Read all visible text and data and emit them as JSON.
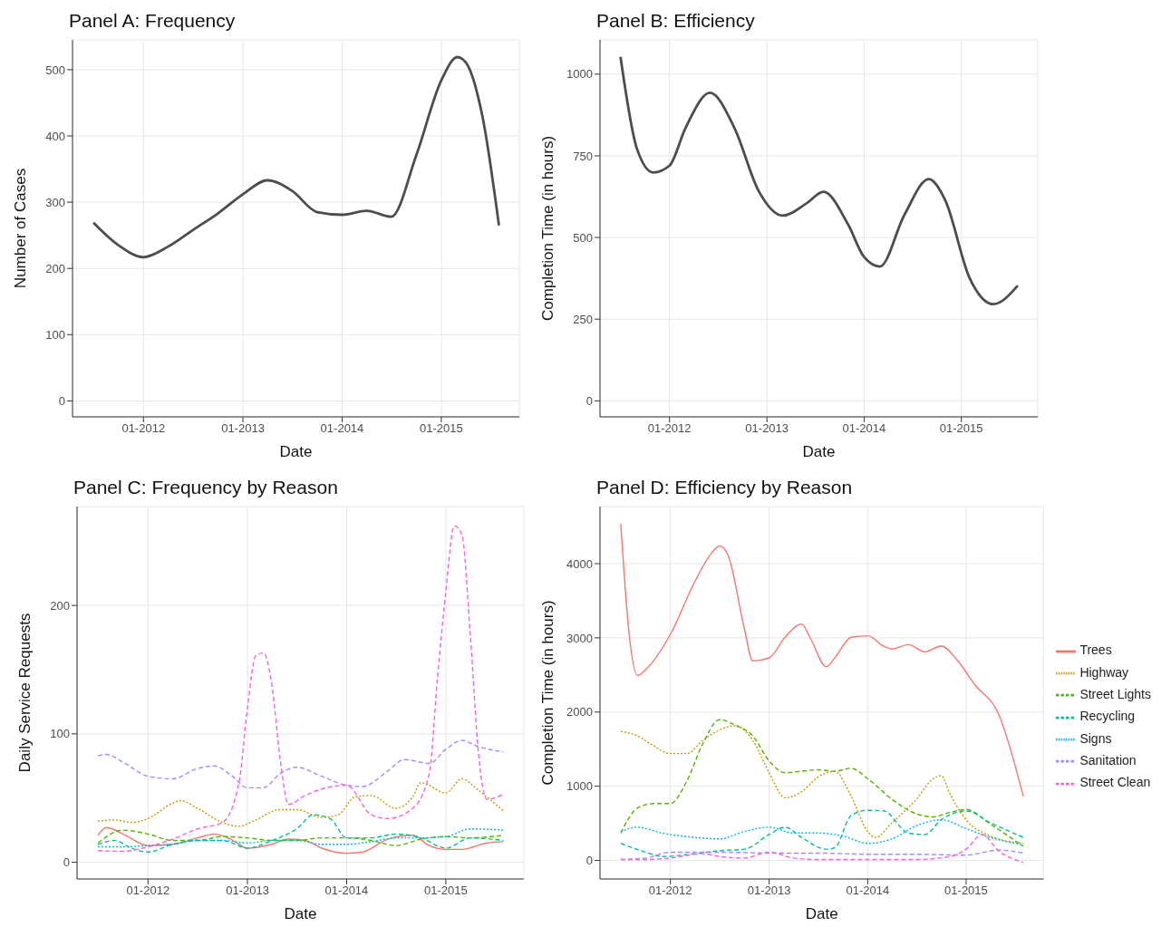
{
  "chart_data": [
    {
      "type": "line",
      "title": "Panel A: Frequency",
      "xlabel": "Date",
      "ylabel": "Number of Cases",
      "grid": true,
      "color": "#4d4d4d",
      "x": [
        "2011-07",
        "2011-10",
        "2012-01",
        "2012-04",
        "2012-07",
        "2012-10",
        "2013-01",
        "2013-04",
        "2013-07",
        "2013-10",
        "2014-01",
        "2014-04",
        "2014-07",
        "2014-10",
        "2015-01",
        "2015-03",
        "2015-04",
        "2015-06",
        "2015-08"
      ],
      "values": [
        269,
        235,
        217,
        233,
        258,
        283,
        312,
        333,
        317,
        285,
        281,
        287,
        278,
        371,
        484,
        519,
        511,
        430,
        265
      ],
      "xlim": [
        "2011-04-15",
        "2015-10-15"
      ],
      "xticks": [
        {
          "value": "2012-01",
          "label": "01-2012"
        },
        {
          "value": "2013-01",
          "label": "01-2013"
        },
        {
          "value": "2014-01",
          "label": "01-2014"
        },
        {
          "value": "2015-01",
          "label": "01-2015"
        }
      ],
      "ylim": [
        -24,
        545
      ],
      "yticks": [
        0,
        100,
        200,
        300,
        400,
        500
      ]
    },
    {
      "type": "line",
      "title": "Panel B: Efficiency",
      "xlabel": "Date",
      "ylabel": "Completion Time (in hours)",
      "grid": true,
      "color": "#4d4d4d",
      "x": [
        "2011-07",
        "2011-09",
        "2011-11",
        "2012-01",
        "2012-03",
        "2012-06",
        "2012-09",
        "2012-12",
        "2013-03",
        "2013-06",
        "2013-08",
        "2013-11",
        "2014-01",
        "2014-03",
        "2014-06",
        "2014-09",
        "2014-11",
        "2015-02",
        "2015-05",
        "2015-08"
      ],
      "values": [
        1053,
        771,
        699,
        720,
        835,
        943,
        835,
        642,
        567,
        606,
        640,
        541,
        440,
        411,
        569,
        679,
        615,
        376,
        296,
        353
      ],
      "xlim": [
        "2011-04-15",
        "2015-10-15"
      ],
      "xticks": [
        {
          "value": "2012-01",
          "label": "01-2012"
        },
        {
          "value": "2013-01",
          "label": "01-2013"
        },
        {
          "value": "2014-01",
          "label": "01-2014"
        },
        {
          "value": "2015-01",
          "label": "01-2015"
        }
      ],
      "ylim": [
        -49,
        1105
      ],
      "yticks": [
        0,
        250,
        500,
        750,
        1000
      ]
    },
    {
      "type": "line",
      "title": "Panel C: Frequency by Reason",
      "xlabel": "Date",
      "ylabel": "Daily Service Requests",
      "grid": true,
      "xlim": [
        "2011-04-15",
        "2015-10-15"
      ],
      "xticks": [
        {
          "value": "2012-01",
          "label": "01-2012"
        },
        {
          "value": "2013-01",
          "label": "01-2013"
        },
        {
          "value": "2014-01",
          "label": "01-2014"
        },
        {
          "value": "2015-01",
          "label": "01-2015"
        }
      ],
      "ylim": [
        -13,
        277
      ],
      "yticks": [
        0,
        100,
        200
      ],
      "series": [
        {
          "color": "#f8766d",
          "line_style": "solid",
          "x": [
            "2011-07",
            "2011-08",
            "2011-10",
            "2012-01",
            "2012-04",
            "2012-07",
            "2012-09",
            "2012-11",
            "2013-01",
            "2013-04",
            "2013-06",
            "2013-08",
            "2013-10",
            "2014-01",
            "2014-03",
            "2014-06",
            "2014-09",
            "2014-11",
            "2015-01",
            "2015-03",
            "2015-06",
            "2015-08"
          ],
          "values": [
            21,
            27,
            22,
            13,
            14,
            19,
            22,
            18,
            11,
            14,
            18,
            17,
            11,
            7,
            8,
            18,
            21,
            13,
            10,
            10,
            15,
            16
          ]
        },
        {
          "color": "#c49a00",
          "line_style": "dotted",
          "x": [
            "2011-07",
            "2011-09",
            "2011-11",
            "2012-01",
            "2012-04",
            "2012-05",
            "2012-07",
            "2012-10",
            "2012-12",
            "2013-02",
            "2013-05",
            "2013-07",
            "2013-10",
            "2013-12",
            "2014-02",
            "2014-04",
            "2014-07",
            "2014-09",
            "2014-10",
            "2015-01",
            "2015-03",
            "2015-05",
            "2015-08"
          ],
          "values": [
            32,
            33,
            31,
            34,
            46,
            48,
            42,
            31,
            28,
            33,
            41,
            41,
            35,
            37,
            51,
            52,
            42,
            51,
            62,
            54,
            65,
            56,
            40
          ]
        },
        {
          "color": "#53b400",
          "line_style": "dashed",
          "x": [
            "2011-07",
            "2011-10",
            "2012-01",
            "2012-04",
            "2012-07",
            "2012-10",
            "2013-01",
            "2013-04",
            "2013-07",
            "2013-10",
            "2014-01",
            "2014-04",
            "2014-07",
            "2014-10",
            "2015-01",
            "2015-04",
            "2015-08"
          ],
          "values": [
            15,
            25,
            22,
            17,
            17,
            20,
            19,
            17,
            17,
            19,
            19,
            17,
            13,
            18,
            20,
            19,
            21
          ]
        },
        {
          "color": "#00c094",
          "line_style": "dashed",
          "x": [
            "2011-07",
            "2011-09",
            "2011-11",
            "2012-01",
            "2012-04",
            "2012-07",
            "2012-10",
            "2013-01",
            "2013-04",
            "2013-07",
            "2013-09",
            "2013-11",
            "2014-01",
            "2014-04",
            "2014-07",
            "2014-10",
            "2015-01",
            "2015-04",
            "2015-08"
          ],
          "values": [
            14,
            17,
            11,
            8,
            14,
            17,
            17,
            11,
            17,
            26,
            37,
            34,
            19,
            19,
            22,
            19,
            11,
            19,
            17
          ]
        },
        {
          "color": "#00b6eb",
          "line_style": "dotted",
          "x": [
            "2011-07",
            "2011-10",
            "2012-01",
            "2012-04",
            "2012-07",
            "2012-10",
            "2013-01",
            "2013-04",
            "2013-07",
            "2013-10",
            "2014-01",
            "2014-04",
            "2014-07",
            "2014-10",
            "2015-01",
            "2015-04",
            "2015-08"
          ],
          "values": [
            12,
            12,
            13,
            14,
            17,
            17,
            15,
            17,
            17,
            14,
            14,
            16,
            19,
            19,
            20,
            26,
            25
          ]
        },
        {
          "color": "#a58aff",
          "line_style": "dashed",
          "x": [
            "2011-07",
            "2011-08",
            "2011-10",
            "2012-01",
            "2012-04",
            "2012-07",
            "2012-09",
            "2012-11",
            "2013-01",
            "2013-03",
            "2013-05",
            "2013-07",
            "2013-10",
            "2014-01",
            "2014-03",
            "2014-06",
            "2014-08",
            "2014-11",
            "2015-01",
            "2015-03",
            "2015-05",
            "2015-08"
          ],
          "values": [
            83,
            84,
            78,
            67,
            65,
            73,
            75,
            68,
            58,
            58,
            69,
            74,
            67,
            60,
            59,
            71,
            80,
            77,
            88,
            95,
            90,
            86
          ]
        },
        {
          "color": "#fb61d7",
          "line_style": "dashed",
          "x": [
            "2011-07",
            "2011-10",
            "2012-01",
            "2012-04",
            "2012-07",
            "2012-10",
            "2012-12",
            "2013-01",
            "2013-02",
            "2013-03",
            "2013-04",
            "2013-05",
            "2013-06",
            "2013-08",
            "2013-10",
            "2014-01",
            "2014-04",
            "2014-06",
            "2014-09",
            "2014-11",
            "2014-12",
            "2015-01",
            "2015-02",
            "2015-03",
            "2015-04",
            "2015-05",
            "2015-06",
            "2015-08"
          ],
          "values": [
            9,
            8.5,
            12,
            18,
            26,
            31,
            62,
            120,
            161,
            163,
            138,
            81,
            45,
            52,
            57,
            60,
            37,
            34,
            42,
            69,
            143,
            211,
            262,
            255,
            177,
            85,
            49,
            53
          ]
        }
      ]
    },
    {
      "type": "line",
      "title": "Panel D: Efficiency by Reason",
      "xlabel": "Date",
      "ylabel": "Completion Time (in hours)",
      "grid": true,
      "legend": "right",
      "xlim": [
        "2011-04-15",
        "2015-10-15"
      ],
      "xticks": [
        {
          "value": "2012-01",
          "label": "01-2012"
        },
        {
          "value": "2013-01",
          "label": "01-2013"
        },
        {
          "value": "2014-01",
          "label": "01-2014"
        },
        {
          "value": "2015-01",
          "label": "01-2015"
        }
      ],
      "ylim": [
        -250,
        4770
      ],
      "yticks": [
        0,
        1000,
        2000,
        3000,
        4000
      ],
      "series": [
        {
          "name": "Trees",
          "color": "#f8766d",
          "line_style": "solid",
          "x": [
            "2011-07",
            "2011-08",
            "2011-09",
            "2011-10",
            "2012-01",
            "2012-04",
            "2012-06",
            "2012-07",
            "2012-08",
            "2012-10",
            "2012-11",
            "2013-01",
            "2013-03",
            "2013-05",
            "2013-06",
            "2013-08",
            "2013-09",
            "2013-11",
            "2014-01",
            "2014-03",
            "2014-04",
            "2014-06",
            "2014-08",
            "2014-10",
            "2014-12",
            "2015-02",
            "2015-05",
            "2015-08"
          ],
          "values": [
            4536,
            3048,
            2492,
            2571,
            3048,
            3762,
            4139,
            4238,
            4119,
            3127,
            2690,
            2730,
            3008,
            3187,
            3008,
            2611,
            2730,
            3008,
            3028,
            2889,
            2849,
            2909,
            2810,
            2889,
            2690,
            2373,
            1976,
            865
          ]
        },
        {
          "name": "Highway",
          "color": "#c49a00",
          "line_style": "dotted",
          "x": [
            "2011-07",
            "2011-09",
            "2011-11",
            "2012-01",
            "2012-03",
            "2012-05",
            "2012-07",
            "2012-09",
            "2012-11",
            "2013-01",
            "2013-03",
            "2013-05",
            "2013-07",
            "2013-09",
            "2013-11",
            "2014-01",
            "2014-02",
            "2014-04",
            "2014-07",
            "2014-09",
            "2014-10",
            "2014-11",
            "2015-01",
            "2015-04",
            "2015-08"
          ],
          "values": [
            1738,
            1679,
            1540,
            1440,
            1440,
            1619,
            1758,
            1817,
            1619,
            1183,
            845,
            925,
            1123,
            1202,
            865,
            389,
            310,
            508,
            825,
            1103,
            1143,
            905,
            548,
            329,
            230
          ]
        },
        {
          "name": "Street Lights",
          "color": "#53b400",
          "line_style": "dashed",
          "x": [
            "2011-07",
            "2011-09",
            "2011-11",
            "2012-01",
            "2012-03",
            "2012-05",
            "2012-07",
            "2012-09",
            "2012-11",
            "2013-01",
            "2013-03",
            "2013-05",
            "2013-07",
            "2013-09",
            "2013-11",
            "2014-01",
            "2014-04",
            "2014-07",
            "2014-09",
            "2014-11",
            "2015-01",
            "2015-04",
            "2015-08"
          ],
          "values": [
            369,
            706,
            766,
            766,
            1063,
            1579,
            1897,
            1817,
            1679,
            1341,
            1183,
            1202,
            1222,
            1202,
            1242,
            1103,
            825,
            627,
            587,
            647,
            687,
            488,
            190
          ]
        },
        {
          "name": "Recycling",
          "color": "#00c094",
          "line_style": "dashed",
          "x": [
            "2011-07",
            "2011-10",
            "2011-12",
            "2012-04",
            "2012-07",
            "2012-10",
            "2013-01",
            "2013-03",
            "2013-05",
            "2013-08",
            "2013-09",
            "2013-11",
            "2014-01",
            "2014-03",
            "2014-06",
            "2014-08",
            "2014-10",
            "2015-01",
            "2015-04",
            "2015-08"
          ],
          "values": [
            230,
            111,
            52,
            91,
            131,
            151,
            349,
            448,
            310,
            151,
            171,
            607,
            675,
            667,
            369,
            349,
            548,
            667,
            508,
            310
          ]
        },
        {
          "name": "Signs",
          "color": "#00b6eb",
          "line_style": "dotted",
          "x": [
            "2011-07",
            "2011-09",
            "2011-12",
            "2012-04",
            "2012-07",
            "2012-10",
            "2013-01",
            "2013-04",
            "2013-07",
            "2013-10",
            "2014-01",
            "2014-04",
            "2014-07",
            "2014-10",
            "2015-01",
            "2015-04",
            "2015-08"
          ],
          "values": [
            389,
            448,
            369,
            310,
            290,
            389,
            448,
            369,
            369,
            329,
            230,
            290,
            468,
            548,
            429,
            310,
            210
          ]
        },
        {
          "name": "Sanitation",
          "color": "#a58aff",
          "line_style": "dashed",
          "x": [
            "2011-07",
            "2011-10",
            "2012-01",
            "2012-07",
            "2013-01",
            "2013-07",
            "2014-01",
            "2014-07",
            "2015-01",
            "2015-05",
            "2015-08"
          ],
          "values": [
            12,
            32,
            111,
            111,
            99,
            99,
            83,
            83,
            71,
            139,
            99
          ]
        },
        {
          "name": "Street Clean",
          "color": "#fb61d7",
          "line_style": "dashed",
          "x": [
            "2011-07",
            "2011-10",
            "2012-01",
            "2012-05",
            "2012-07",
            "2012-10",
            "2013-01",
            "2013-04",
            "2013-07",
            "2014-01",
            "2014-07",
            "2014-11",
            "2015-01",
            "2015-03",
            "2015-05",
            "2015-08"
          ],
          "values": [
            12,
            12,
            32,
            91,
            52,
            32,
            111,
            32,
            12,
            12,
            12,
            52,
            151,
            349,
            131,
            -28
          ]
        }
      ]
    }
  ]
}
